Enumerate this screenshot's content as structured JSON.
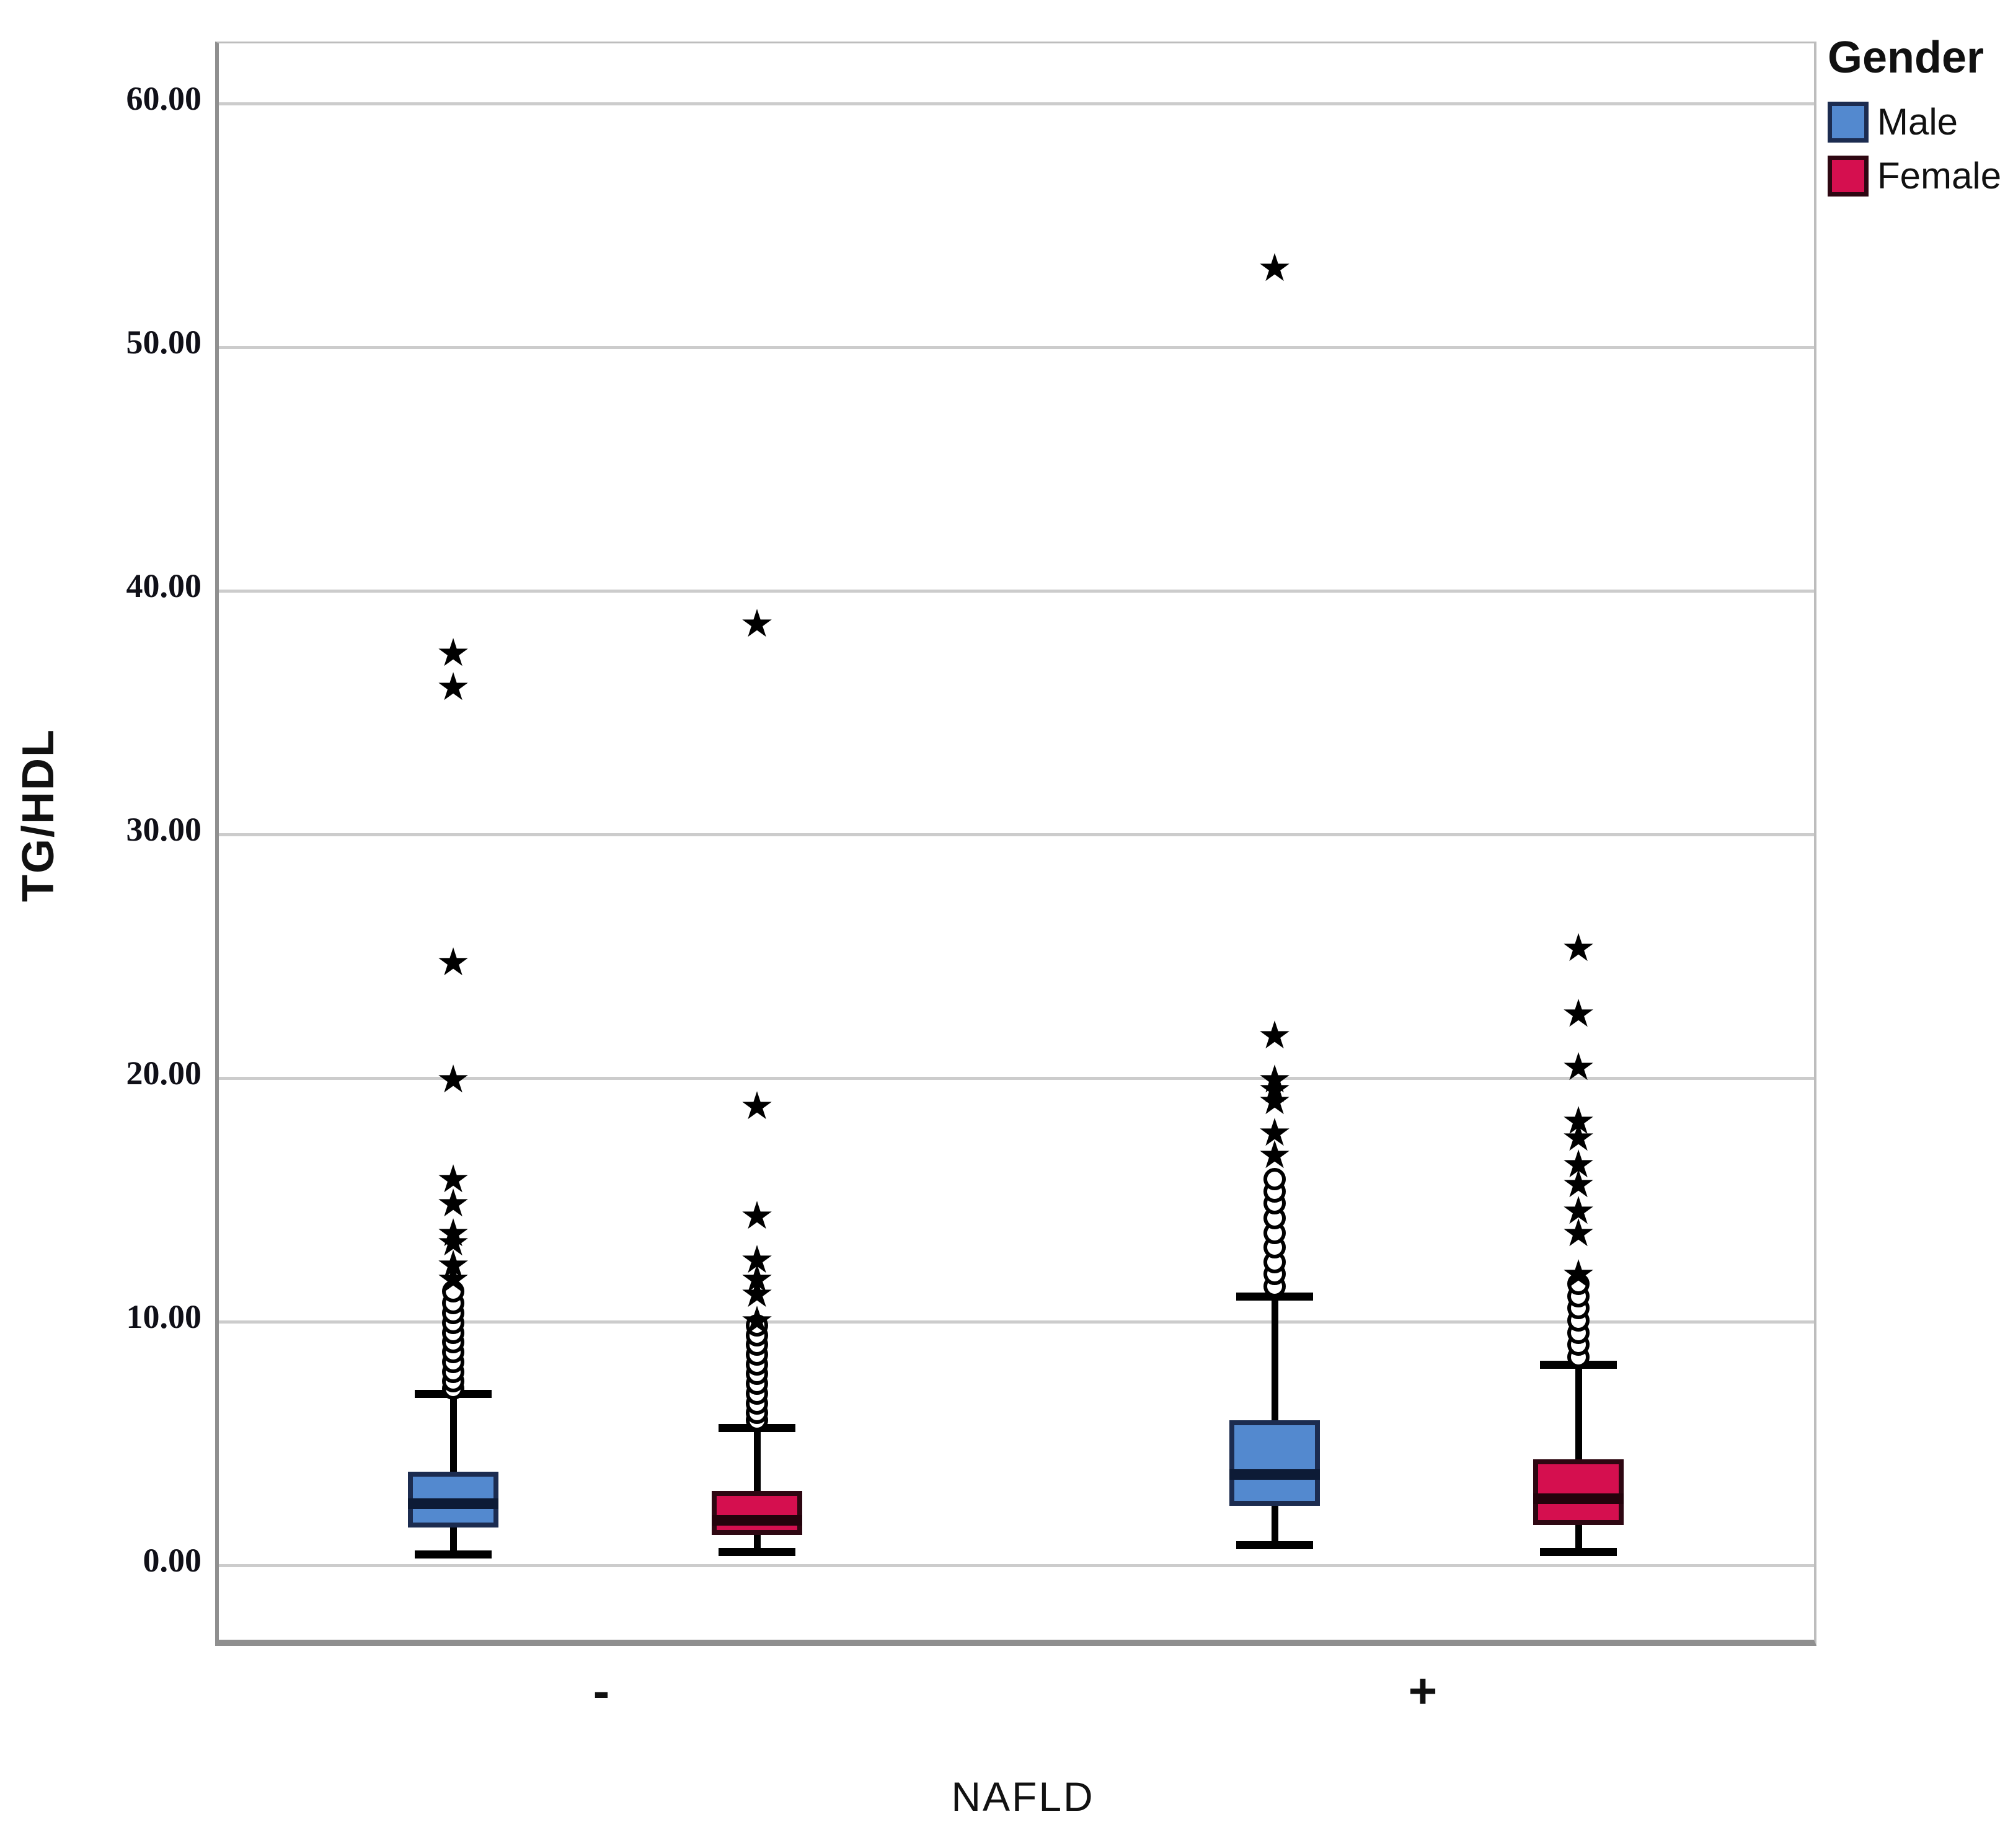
{
  "figure": {
    "background": "#ffffff"
  },
  "axes": {
    "y_title": "TG/HDL",
    "x_title": "NAFLD",
    "y_ticks": [
      {
        "label": "0.00",
        "value": 0
      },
      {
        "label": "10.00",
        "value": 10
      },
      {
        "label": "20.00",
        "value": 20
      },
      {
        "label": "30.00",
        "value": 30
      },
      {
        "label": "40.00",
        "value": 40
      },
      {
        "label": "50.00",
        "value": 50
      },
      {
        "label": "60.00",
        "value": 60
      }
    ],
    "x_group_labels": [
      {
        "label": "-",
        "group": "-"
      },
      {
        "label": "+",
        "group": "+"
      }
    ]
  },
  "legend": {
    "title": "Gender",
    "items": [
      {
        "label": "Male",
        "fill": "#5389CF",
        "border": "#1C2C50"
      },
      {
        "label": "Female",
        "fill": "#D50F4F",
        "border": "#2E0712"
      }
    ]
  },
  "chart_data": {
    "type": "boxplot",
    "title": "",
    "xlabel": "NAFLD",
    "ylabel": "TG/HDL",
    "ylim": [
      -3,
      62
    ],
    "grid": true,
    "gridline_values": [
      0,
      10,
      20,
      30,
      40,
      50,
      60
    ],
    "groups": [
      "-",
      "+"
    ],
    "legend_title": "Gender",
    "legend_position": "top-right",
    "outlier_symbols": {
      "mild": "open-circle",
      "extreme": "star"
    },
    "series": [
      {
        "name": "Male",
        "fill": "#5389CF",
        "border": "#1C2C50",
        "median_color": "#0D1B36",
        "boxes": [
          {
            "group": "-",
            "whisker_low": 0.4,
            "q1": 1.5,
            "median": 2.5,
            "q3": 3.8,
            "whisker_high": 7.0,
            "outliers_circle": [
              7.2,
              7.5,
              7.9,
              8.3,
              8.7,
              9.1,
              9.5,
              9.9,
              10.3,
              10.7,
              11.2
            ],
            "outliers_star": [
              11.7,
              12.3,
              13.2,
              13.6,
              14.8,
              15.8,
              19.9,
              24.7,
              36.0,
              37.4
            ]
          },
          {
            "group": "+",
            "whisker_low": 0.8,
            "q1": 2.4,
            "median": 3.7,
            "q3": 5.9,
            "whisker_high": 11.0,
            "outliers_circle": [
              11.4,
              11.9,
              12.4,
              13.0,
              13.6,
              14.2,
              14.8,
              15.3,
              15.8
            ],
            "outliers_star": [
              16.8,
              17.7,
              19.0,
              19.5,
              19.9,
              21.7,
              53.2
            ]
          }
        ]
      },
      {
        "name": "Female",
        "fill": "#D50F4F",
        "border": "#2E0712",
        "median_color": "#24030C",
        "boxes": [
          {
            "group": "-",
            "whisker_low": 0.5,
            "q1": 1.2,
            "median": 1.8,
            "q3": 3.0,
            "whisker_high": 5.6,
            "outliers_circle": [
              5.9,
              6.2,
              6.6,
              7.0,
              7.4,
              7.8,
              8.2,
              8.6,
              9.0,
              9.4,
              9.8
            ],
            "outliers_star": [
              10.0,
              11.1,
              11.7,
              12.5,
              14.3,
              18.8,
              38.6
            ]
          },
          {
            "group": "+",
            "whisker_low": 0.5,
            "q1": 1.6,
            "median": 2.7,
            "q3": 4.3,
            "whisker_high": 8.2,
            "outliers_circle": [
              8.5,
              9.0,
              9.5,
              10.0,
              10.5,
              11.0,
              11.5
            ],
            "outliers_star": [
              11.9,
              13.6,
              14.5,
              15.6,
              16.4,
              17.5,
              18.2,
              20.4,
              22.6,
              25.3
            ]
          }
        ]
      }
    ]
  }
}
